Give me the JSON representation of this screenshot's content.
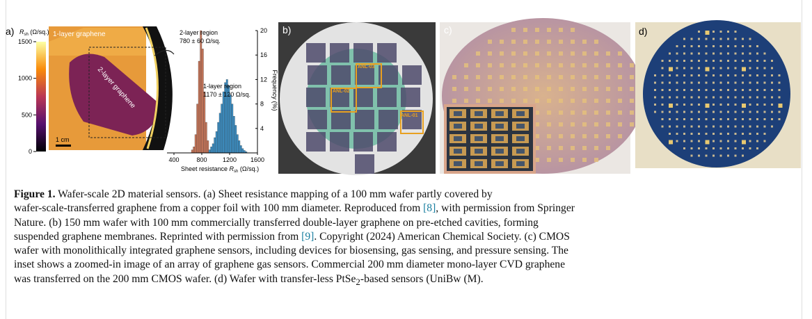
{
  "panel_a": {
    "label": "a)",
    "colorbar": {
      "title": {
        "symbol": "R",
        "sub": "sh",
        "unit": " (Ω/sq.)"
      },
      "lim": [
        0,
        1500
      ],
      "ticks": [
        0,
        500,
        1000,
        1500
      ]
    },
    "map": {
      "layer1": "1-layer graphene",
      "layer2": "2-layer graphene",
      "scale": "1 cm"
    },
    "histogram": {
      "type": "histogram",
      "bins": [
        650,
        675,
        700,
        725,
        750,
        775,
        800,
        825,
        850,
        875,
        900,
        925,
        950,
        975,
        1000,
        1025,
        1050,
        1075,
        1100,
        1125,
        1150,
        1175,
        1200,
        1225,
        1250,
        1275,
        1300,
        1325,
        1350,
        1375,
        1400,
        1425,
        1450
      ],
      "series": [
        {
          "color": "#c8775a",
          "values": [
            0.5,
            1,
            3,
            8,
            15,
            20,
            17,
            10,
            5,
            2,
            0.5,
            0,
            0,
            0,
            0,
            0,
            0,
            0,
            0,
            0,
            0,
            0,
            0,
            0,
            0,
            0,
            0,
            0,
            0,
            0,
            0,
            0
          ]
        },
        {
          "color": "#3d8fc4",
          "values": [
            0,
            0,
            0,
            0,
            0,
            0,
            0,
            0,
            0,
            0,
            0.5,
            1,
            1.5,
            2.5,
            3.5,
            5,
            6.5,
            8,
            10,
            11.5,
            12,
            11,
            9.5,
            8,
            6,
            4.5,
            3,
            2,
            1.2,
            0.7,
            0.4,
            0.2
          ]
        }
      ],
      "xlim": [
        300,
        1600
      ],
      "xticks": [
        400,
        800,
        1200,
        1600
      ],
      "ylim": [
        0,
        20
      ],
      "yticks": [
        4,
        8,
        12,
        16,
        20
      ],
      "xlabel": {
        "text": "Sheet resistance ",
        "symbol": "R",
        "sub": "sh",
        "unit": " (Ω/sq.)"
      },
      "ylabel": "Frequency (%)",
      "annotations": [
        {
          "title": "2-layer region",
          "value": "780 ± 60 Ω/sq."
        },
        {
          "title": "1-layer region",
          "value": "1170 ± 120 Ω/sq."
        }
      ]
    }
  },
  "panel_b": {
    "label": "b)",
    "boxes": [
      "ANL-03",
      "ANL-02",
      "ANL-01"
    ]
  },
  "panel_c": {
    "label": "c)"
  },
  "panel_d": {
    "label": "d)"
  },
  "caption": {
    "lines": [
      {
        "label": "Figure 1.",
        "text": " Wafer-scale 2D material sensors. (a) Sheet resistance mapping of a 100 mm wafer partly covered by"
      },
      {
        "before": "wafer-scale-transferred graphene from a copper foil with 100 mm diameter. Reproduced from ",
        "cite": "[8]",
        "after": ", with permission from Springer"
      },
      {
        "text": "Nature. (b) 150 mm wafer with 100 mm commercially transferred double-layer graphene on pre-etched cavities, forming"
      },
      {
        "before": "suspended graphene membranes. Reprinted with permission from ",
        "cite": "[9]",
        "after": ". Copyright (2024) American Chemical Society. (c) CMOS"
      },
      {
        "text": "wafer with monolithically integrated graphene sensors, including devices for biosensing, gas sensing, and pressure sensing. The"
      },
      {
        "text": "inset shows a zoomed-in image of an array of graphene gas sensors. Commercial 200 mm diameter mono-layer CVD graphene"
      },
      {
        "before": "was transferred on the 200 mm CMOS wafer. (d) Wafer with transfer-less PtSe",
        "sub": "2",
        "after": "-based sensors (UniBw (M)."
      }
    ]
  }
}
